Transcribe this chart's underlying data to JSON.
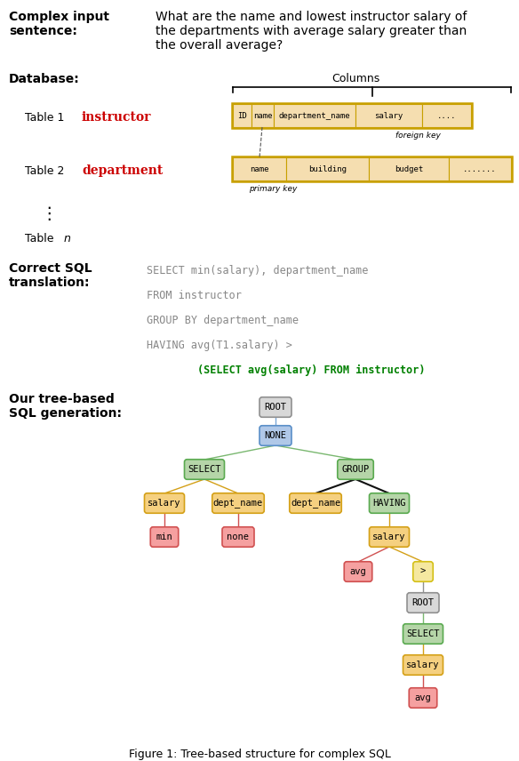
{
  "fig_width": 5.84,
  "fig_height": 8.56,
  "bg_color": "#ffffff",
  "complex_input_label": "Complex input\nsentence:",
  "complex_input_text": "What are the name and lowest instructor salary of\nthe departments with average salary greater than\nthe overall average?",
  "database_label": "Database:",
  "table1_label": "Table 1",
  "table1_name": "instructor",
  "table1_cols": [
    "ID",
    "name",
    "department_name",
    "salary",
    "...."
  ],
  "table2_label": "Table 2",
  "table2_name": "department",
  "table2_cols": [
    "name",
    "building",
    "budget",
    "......."
  ],
  "table_n_italic": "n",
  "columns_label": "Columns",
  "foreign_key_label": "foreign key",
  "primary_key_label": "primary key",
  "correct_sql_label": "Correct SQL\ntranslation:",
  "sql_lines": [
    "SELECT min(salary), department_name",
    "FROM instructor",
    "GROUP BY department_name",
    "HAVING avg(T1.salary) >",
    "        (SELECT avg(salary) FROM instructor)"
  ],
  "sql_highlight_line": 4,
  "sql_highlight_color": "#008000",
  "sql_normal_color": "#888888",
  "tree_label": "Our tree-based\nSQL generation:",
  "table_box_color": "#f5deb0",
  "table_box_border": "#c8a000",
  "caption": "Figure 1: Tree-based structure for complex SQL"
}
